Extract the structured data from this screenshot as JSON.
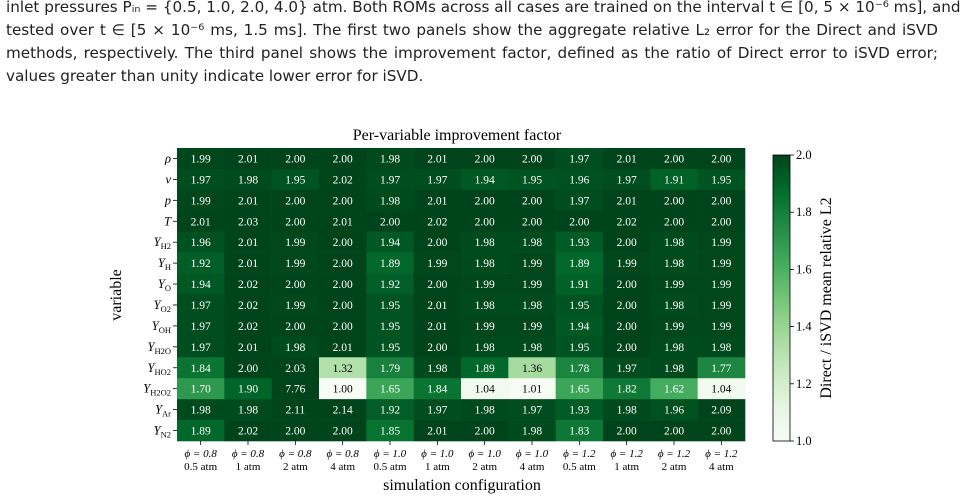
{
  "paragraph_lines": [
    "inlet pressures Pᵢₙ = {0.5, 1.0, 2.0, 4.0} atm. Both ROMs across all cases are trained on the interval t ∈ [0, 5 × 10⁻⁶ ms], and",
    "tested over t ∈ [5 × 10⁻⁶ ms, 1.5 ms]. The first two panels show the aggregate relative L₂ error for the Direct and iSVD",
    "methods, respectively. The third panel shows the improvement factor, defined as the ratio of Direct error to iSVD error;",
    "values greater than unity indicate lower error for iSVD."
  ],
  "chart_data": {
    "type": "heatmap",
    "title": "Per-variable improvement factor",
    "xlabel": "simulation configuration",
    "ylabel": "variable",
    "colorbar_label": "Direct / iSVD mean relative L2",
    "colormap": [
      "#f7fcf5",
      "#e5f5e0",
      "#c7e9c0",
      "#a1d99b",
      "#74c476",
      "#41ab5d",
      "#238b45",
      "#006d2c",
      "#00441b"
    ],
    "clim": [
      1.0,
      2.0
    ],
    "cticks": [
      {
        "value": 1.0,
        "label": "1.0"
      },
      {
        "value": 1.2,
        "label": "1.2"
      },
      {
        "value": 1.4,
        "label": "1.4"
      },
      {
        "value": 1.6,
        "label": "1.6"
      },
      {
        "value": 1.8,
        "label": "1.8"
      },
      {
        "value": 2.0,
        "label": "2.0"
      }
    ],
    "columns": [
      {
        "phi": "ϕ = 0.8",
        "pressure": "0.5 atm"
      },
      {
        "phi": "ϕ = 0.8",
        "pressure": "1 atm"
      },
      {
        "phi": "ϕ = 0.8",
        "pressure": "2 atm"
      },
      {
        "phi": "ϕ = 0.8",
        "pressure": "4 atm"
      },
      {
        "phi": "ϕ = 1.0",
        "pressure": "0.5 atm"
      },
      {
        "phi": "ϕ = 1.0",
        "pressure": "1 atm"
      },
      {
        "phi": "ϕ = 1.0",
        "pressure": "2 atm"
      },
      {
        "phi": "ϕ = 1.0",
        "pressure": "4 atm"
      },
      {
        "phi": "ϕ = 1.2",
        "pressure": "0.5 atm"
      },
      {
        "phi": "ϕ = 1.2",
        "pressure": "1 atm"
      },
      {
        "phi": "ϕ = 1.2",
        "pressure": "2 atm"
      },
      {
        "phi": "ϕ = 1.2",
        "pressure": "4 atm"
      }
    ],
    "rows": [
      {
        "text": "ρ"
      },
      {
        "text": "v"
      },
      {
        "text": "p"
      },
      {
        "text": "T"
      },
      {
        "text": "Y",
        "sub": "H2"
      },
      {
        "text": "Y",
        "sub": "H"
      },
      {
        "text": "Y",
        "sub": "O"
      },
      {
        "text": "Y",
        "sub": "O2"
      },
      {
        "text": "Y",
        "sub": "OH"
      },
      {
        "text": "Y",
        "sub": "H2O"
      },
      {
        "text": "Y",
        "sub": "HO2"
      },
      {
        "text": "Y",
        "sub": "H2O2"
      },
      {
        "text": "Y",
        "sub": "Ar"
      },
      {
        "text": "Y",
        "sub": "N2"
      }
    ],
    "values": [
      [
        1.99,
        2.01,
        2.0,
        2.0,
        1.98,
        2.01,
        2.0,
        2.0,
        1.97,
        2.01,
        2.0,
        2.0
      ],
      [
        1.97,
        1.98,
        1.95,
        2.02,
        1.97,
        1.97,
        1.94,
        1.95,
        1.96,
        1.97,
        1.91,
        1.95
      ],
      [
        1.99,
        2.01,
        2.0,
        2.0,
        1.98,
        2.01,
        2.0,
        2.0,
        1.97,
        2.01,
        2.0,
        2.0
      ],
      [
        2.01,
        2.03,
        2.0,
        2.01,
        2.0,
        2.02,
        2.0,
        2.0,
        2.0,
        2.02,
        2.0,
        2.0
      ],
      [
        1.96,
        2.01,
        1.99,
        2.0,
        1.94,
        2.0,
        1.98,
        1.98,
        1.93,
        2.0,
        1.98,
        1.99
      ],
      [
        1.92,
        2.01,
        1.99,
        2.0,
        1.89,
        1.99,
        1.98,
        1.99,
        1.89,
        1.99,
        1.98,
        1.99
      ],
      [
        1.94,
        2.02,
        2.0,
        2.0,
        1.92,
        2.0,
        1.99,
        1.99,
        1.91,
        2.0,
        1.99,
        1.99
      ],
      [
        1.97,
        2.02,
        1.99,
        2.0,
        1.95,
        2.01,
        1.98,
        1.98,
        1.95,
        2.0,
        1.98,
        1.99
      ],
      [
        1.97,
        2.02,
        2.0,
        2.0,
        1.95,
        2.01,
        1.99,
        1.99,
        1.94,
        2.0,
        1.99,
        1.99
      ],
      [
        1.97,
        2.01,
        1.98,
        2.01,
        1.95,
        2.0,
        1.98,
        1.98,
        1.95,
        2.0,
        1.98,
        1.98
      ],
      [
        1.84,
        2.0,
        2.03,
        1.32,
        1.79,
        1.98,
        1.89,
        1.36,
        1.78,
        1.97,
        1.98,
        1.77
      ],
      [
        1.7,
        1.9,
        7.76,
        1.0,
        1.65,
        1.84,
        1.04,
        1.01,
        1.65,
        1.82,
        1.62,
        1.04
      ],
      [
        1.98,
        1.98,
        2.11,
        2.14,
        1.92,
        1.97,
        1.98,
        1.97,
        1.93,
        1.98,
        1.96,
        2.09
      ],
      [
        1.89,
        2.02,
        2.0,
        2.0,
        1.85,
        2.01,
        2.0,
        1.98,
        1.83,
        2.0,
        2.0,
        2.0
      ]
    ],
    "value_labels": [
      [
        "1.99",
        "2.01",
        "2.00",
        "2.00",
        "1.98",
        "2.01",
        "2.00",
        "2.00",
        "1.97",
        "2.01",
        "2.00",
        "2.00"
      ],
      [
        "1.97",
        "1.98",
        "1.95",
        "2.02",
        "1.97",
        "1.97",
        "1.94",
        "1.95",
        "1.96",
        "1.97",
        "1.91",
        "1.95"
      ],
      [
        "1.99",
        "2.01",
        "2.00",
        "2.00",
        "1.98",
        "2.01",
        "2.00",
        "2.00",
        "1.97",
        "2.01",
        "2.00",
        "2.00"
      ],
      [
        "2.01",
        "2.03",
        "2.00",
        "2.01",
        "2.00",
        "2.02",
        "2.00",
        "2.00",
        "2.00",
        "2.02",
        "2.00",
        "2.00"
      ],
      [
        "1.96",
        "2.01",
        "1.99",
        "2.00",
        "1.94",
        "2.00",
        "1.98",
        "1.98",
        "1.93",
        "2.00",
        "1.98",
        "1.99"
      ],
      [
        "1.92",
        "2.01",
        "1.99",
        "2.00",
        "1.89",
        "1.99",
        "1.98",
        "1.99",
        "1.89",
        "1.99",
        "1.98",
        "1.99"
      ],
      [
        "1.94",
        "2.02",
        "2.00",
        "2.00",
        "1.92",
        "2.00",
        "1.99",
        "1.99",
        "1.91",
        "2.00",
        "1.99",
        "1.99"
      ],
      [
        "1.97",
        "2.02",
        "1.99",
        "2.00",
        "1.95",
        "2.01",
        "1.98",
        "1.98",
        "1.95",
        "2.00",
        "1.98",
        "1.99"
      ],
      [
        "1.97",
        "2.02",
        "2.00",
        "2.00",
        "1.95",
        "2.01",
        "1.99",
        "1.99",
        "1.94",
        "2.00",
        "1.99",
        "1.99"
      ],
      [
        "1.97",
        "2.01",
        "1.98",
        "2.01",
        "1.95",
        "2.00",
        "1.98",
        "1.98",
        "1.95",
        "2.00",
        "1.98",
        "1.98"
      ],
      [
        "1.84",
        "2.00",
        "2.03",
        "1.32",
        "1.79",
        "1.98",
        "1.89",
        "1.36",
        "1.78",
        "1.97",
        "1.98",
        "1.77"
      ],
      [
        "1.70",
        "1.90",
        "7.76",
        "1.00",
        "1.65",
        "1.84",
        "1.04",
        "1.01",
        "1.65",
        "1.82",
        "1.62",
        "1.04"
      ],
      [
        "1.98",
        "1.98",
        "2.11",
        "2.14",
        "1.92",
        "1.97",
        "1.98",
        "1.97",
        "1.93",
        "1.98",
        "1.96",
        "2.09"
      ],
      [
        "1.89",
        "2.02",
        "2.00",
        "2.00",
        "1.85",
        "2.01",
        "2.00",
        "1.98",
        "1.83",
        "2.00",
        "2.00",
        "2.00"
      ]
    ]
  }
}
